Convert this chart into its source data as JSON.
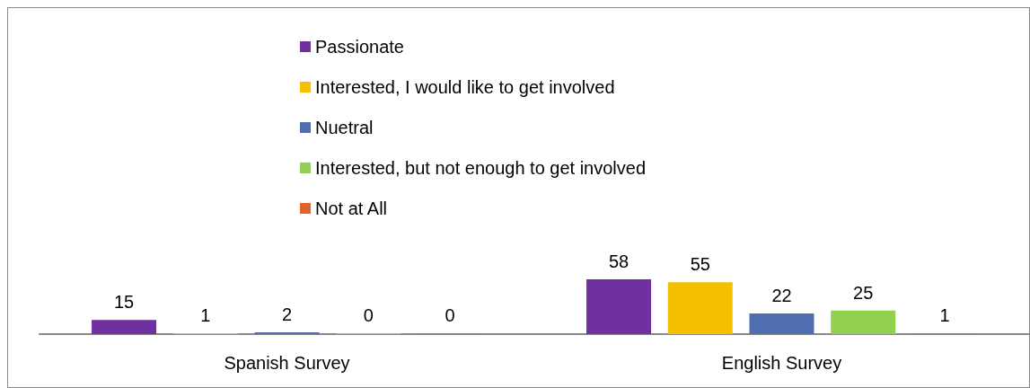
{
  "chart_data": {
    "type": "bar",
    "categories": [
      "Spanish Survey",
      "English Survey"
    ],
    "series": [
      {
        "name": "Passionate",
        "color": "#7030a0",
        "values": [
          15,
          58
        ]
      },
      {
        "name": "Interested, I would like to get involved",
        "color": "#f5c000",
        "values": [
          1,
          55
        ]
      },
      {
        "name": "Nuetral",
        "color": "#4f6eb0",
        "values": [
          2,
          22
        ]
      },
      {
        "name": "Interested, but not enough to get involved",
        "color": "#92d050",
        "values": [
          0,
          25
        ]
      },
      {
        "name": "Not at All",
        "color": "#e0642a",
        "values": [
          0,
          1
        ]
      }
    ],
    "data_labels": true,
    "legend": "top"
  }
}
